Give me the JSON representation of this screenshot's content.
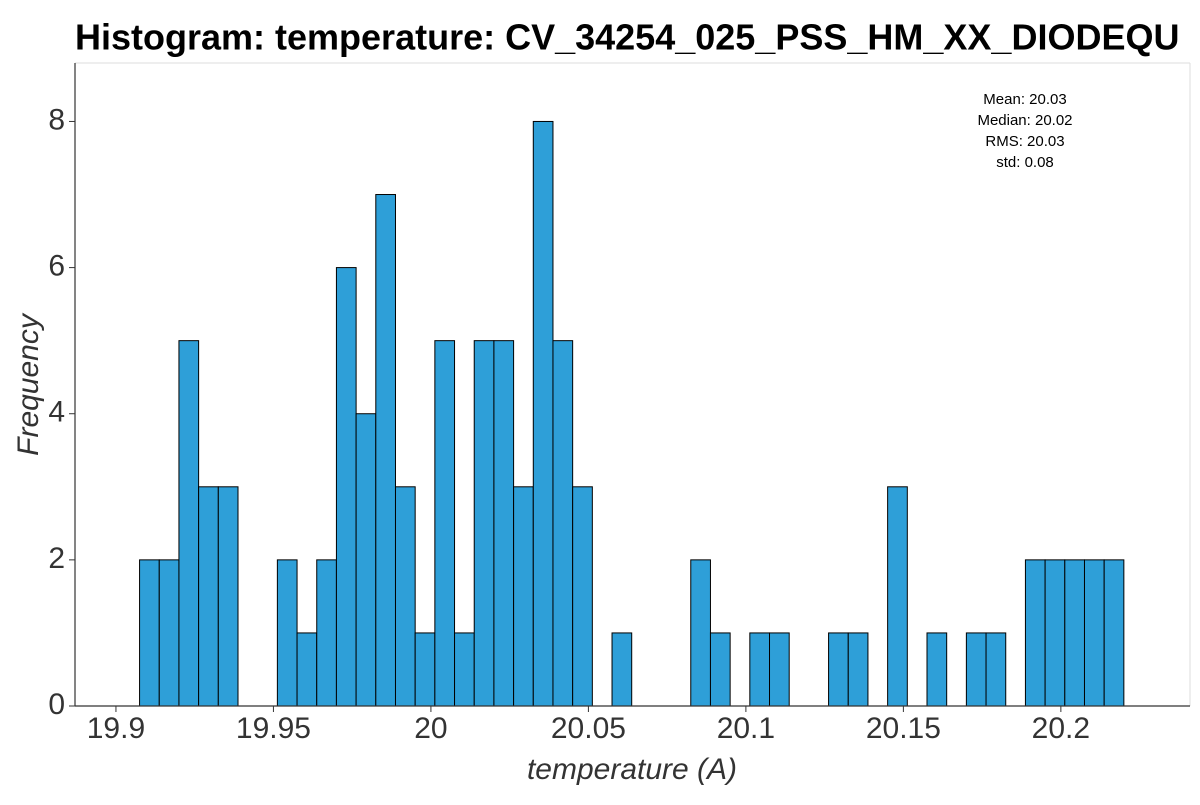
{
  "chart_data": {
    "type": "histogram",
    "title": "Histogram: temperature: CV_34254_025_PSS_HM_XX_DIODEQU",
    "x_label": "temperature (A)",
    "y_label": "Frequency",
    "annotations": [
      "Mean: 20.03",
      "Median: 20.02",
      "RMS: 20.03",
      "std: 0.08"
    ],
    "bins": [
      19.9075,
      19.91375,
      19.92,
      19.92625,
      19.9325,
      19.93875,
      19.945,
      19.95125,
      19.9575,
      19.96375,
      19.97,
      19.97625,
      19.9825,
      19.98875,
      19.995,
      20.00125,
      20.0075,
      20.01375,
      20.02,
      20.02625,
      20.0325,
      20.03875,
      20.045,
      20.05125,
      20.0575,
      20.06375,
      20.07,
      20.07625,
      20.0825,
      20.08875,
      20.095,
      20.10125,
      20.1075,
      20.11375,
      20.12,
      20.12625,
      20.1325,
      20.13875,
      20.145,
      20.15125,
      20.1575,
      20.16375,
      20.17,
      20.17625,
      20.1825,
      20.18875,
      20.195,
      20.20125,
      20.2075,
      20.21375,
      20.22
    ],
    "counts": [
      2,
      2,
      5,
      3,
      3,
      0,
      0,
      2,
      1,
      2,
      6,
      4,
      7,
      3,
      1,
      5,
      1,
      5,
      5,
      3,
      8,
      5,
      3,
      0,
      1,
      0,
      0,
      0,
      2,
      1,
      0,
      1,
      1,
      0,
      0,
      1,
      1,
      0,
      3,
      0,
      1,
      0,
      1,
      1,
      0,
      2,
      2,
      2,
      2,
      2
    ],
    "color": "#2e9fd8",
    "xlim": [
      19.887,
      20.241
    ],
    "ylim": [
      0,
      8.8
    ],
    "xticks": [
      19.9,
      19.95,
      20,
      20.05,
      20.1,
      20.15,
      20.2
    ],
    "yticks": [
      0,
      2,
      4,
      6,
      8
    ]
  }
}
